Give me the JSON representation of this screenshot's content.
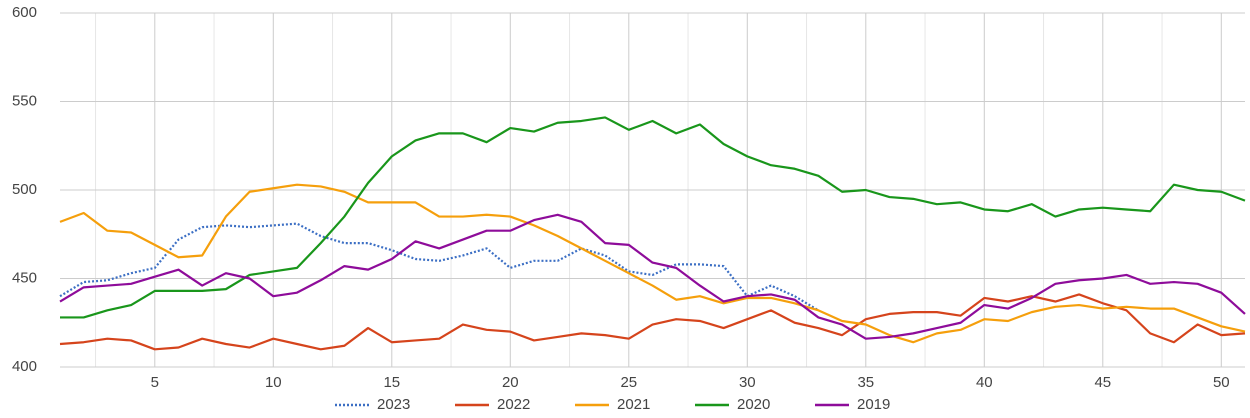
{
  "chart_data": {
    "type": "line",
    "x": [
      1,
      2,
      3,
      4,
      5,
      6,
      7,
      8,
      9,
      10,
      11,
      12,
      13,
      14,
      15,
      16,
      17,
      18,
      19,
      20,
      21,
      22,
      23,
      24,
      25,
      26,
      27,
      28,
      29,
      30,
      31,
      32,
      33,
      34,
      35,
      36,
      37,
      38,
      39,
      40,
      41,
      42,
      43,
      44,
      45,
      46,
      47,
      48,
      49,
      50,
      51
    ],
    "xlim": [
      1,
      51
    ],
    "xticks": [
      5,
      10,
      15,
      20,
      25,
      30,
      35,
      40,
      45,
      50
    ],
    "x_minor_ticks": [
      2.5,
      7.5,
      12.5,
      17.5,
      22.5,
      27.5,
      32.5,
      37.5,
      42.5,
      47.5
    ],
    "ylim": [
      400,
      600
    ],
    "yticks": [
      400,
      450,
      500,
      550,
      600
    ],
    "grid": true,
    "legend": "bottom",
    "series": [
      {
        "name": "2023",
        "color": "#3c6fc4",
        "style": "dotted",
        "values": [
          440,
          448,
          449,
          453,
          456,
          472,
          479,
          480,
          479,
          480,
          481,
          474,
          470,
          470,
          466,
          461,
          460,
          463,
          467,
          456,
          460,
          460,
          467,
          463,
          454,
          452,
          458,
          458,
          457,
          440,
          446,
          440,
          432,
          null,
          null,
          null,
          null,
          null,
          null,
          null,
          null,
          null,
          null,
          null,
          null,
          null,
          null,
          null,
          null,
          null,
          null
        ]
      },
      {
        "name": "2022",
        "color": "#d5441c",
        "style": "solid",
        "values": [
          413,
          414,
          416,
          415,
          410,
          411,
          416,
          413,
          411,
          416,
          413,
          410,
          412,
          422,
          414,
          415,
          416,
          424,
          421,
          420,
          415,
          417,
          419,
          418,
          416,
          424,
          427,
          426,
          422,
          427,
          432,
          425,
          422,
          418,
          427,
          430,
          431,
          431,
          429,
          439,
          437,
          440,
          437,
          441,
          436,
          432,
          419,
          414,
          424,
          418,
          419
        ]
      },
      {
        "name": "2021",
        "color": "#f59f0c",
        "style": "solid",
        "values": [
          482,
          487,
          477,
          476,
          469,
          462,
          463,
          485,
          499,
          501,
          503,
          502,
          499,
          493,
          493,
          493,
          485,
          485,
          486,
          485,
          480,
          474,
          467,
          460,
          453,
          446,
          438,
          440,
          436,
          439,
          439,
          436,
          432,
          426,
          424,
          418,
          414,
          419,
          421,
          427,
          426,
          431,
          434,
          435,
          433,
          434,
          433,
          433,
          428,
          423,
          420
        ]
      },
      {
        "name": "2020",
        "color": "#19961b",
        "style": "solid",
        "values": [
          428,
          428,
          432,
          435,
          443,
          443,
          443,
          444,
          452,
          454,
          456,
          470,
          485,
          504,
          519,
          528,
          532,
          532,
          527,
          535,
          533,
          538,
          539,
          541,
          534,
          539,
          532,
          537,
          526,
          519,
          514,
          512,
          508,
          499,
          500,
          496,
          495,
          492,
          493,
          489,
          488,
          492,
          485,
          489,
          490,
          489,
          488,
          503,
          500,
          499,
          494
        ]
      },
      {
        "name": "2019",
        "color": "#8e0c9a",
        "style": "solid",
        "values": [
          437,
          445,
          446,
          447,
          451,
          455,
          446,
          453,
          450,
          440,
          442,
          449,
          457,
          455,
          461,
          471,
          467,
          472,
          477,
          477,
          483,
          486,
          482,
          470,
          469,
          459,
          456,
          446,
          437,
          440,
          441,
          438,
          428,
          424,
          416,
          417,
          419,
          422,
          425,
          435,
          433,
          439,
          447,
          449,
          450,
          452,
          447,
          448,
          447,
          442,
          430
        ]
      }
    ]
  }
}
